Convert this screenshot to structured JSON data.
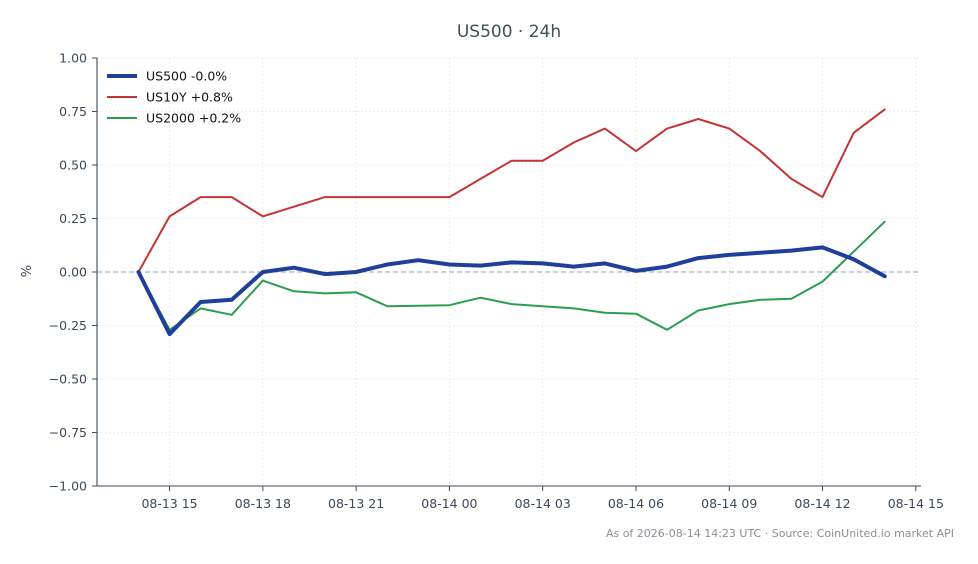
{
  "chart_data": {
    "type": "line",
    "title": "US500 · 24h",
    "ylabel": "%",
    "xlabel": "",
    "ylim": [
      -1.0,
      1.0
    ],
    "y_ticks": [
      1.0,
      0.75,
      0.5,
      0.25,
      0.0,
      -0.25,
      -0.5,
      -0.75,
      -1.0
    ],
    "y_tick_labels": [
      "1.00",
      "0.75",
      "0.50",
      "0.25",
      "0.00",
      "−0.25",
      "−0.50",
      "−0.75",
      "−1.00"
    ],
    "x_range": [
      "2026-08-13 12:40",
      "2026-08-14 15:10"
    ],
    "x_ticks": [
      "2026-08-13 15:00",
      "2026-08-13 18:00",
      "2026-08-13 21:00",
      "2026-08-14 00:00",
      "2026-08-14 03:00",
      "2026-08-14 06:00",
      "2026-08-14 09:00",
      "2026-08-14 12:00",
      "2026-08-14 15:00"
    ],
    "x_tick_labels": [
      "08-13 15",
      "08-13 18",
      "08-13 21",
      "08-14 00",
      "08-14 03",
      "08-14 06",
      "08-14 09",
      "08-14 12",
      "08-14 15"
    ],
    "x": [
      "2026-08-13 14:00",
      "2026-08-13 15:00",
      "2026-08-13 16:00",
      "2026-08-13 17:00",
      "2026-08-13 18:00",
      "2026-08-13 19:00",
      "2026-08-13 20:00",
      "2026-08-13 21:00",
      "2026-08-13 22:00",
      "2026-08-13 23:00",
      "2026-08-14 00:00",
      "2026-08-14 01:00",
      "2026-08-14 02:00",
      "2026-08-14 03:00",
      "2026-08-14 04:00",
      "2026-08-14 05:00",
      "2026-08-14 06:00",
      "2026-08-14 07:00",
      "2026-08-14 08:00",
      "2026-08-14 09:00",
      "2026-08-14 10:00",
      "2026-08-14 11:00",
      "2026-08-14 12:00",
      "2026-08-14 13:00",
      "2026-08-14 14:00"
    ],
    "series": [
      {
        "name": "US500 -0.0%",
        "color": "#1f3f9a",
        "width": "thick",
        "values": [
          0.0,
          -0.29,
          -0.14,
          -0.13,
          0.0,
          0.02,
          -0.01,
          0.0,
          0.035,
          0.055,
          0.035,
          0.03,
          0.045,
          0.04,
          0.025,
          0.04,
          0.005,
          0.025,
          0.065,
          0.08,
          0.09,
          0.1,
          0.115,
          0.06,
          -0.02
        ]
      },
      {
        "name": "US10Y +0.8%",
        "color": "#c43434",
        "width": "normal",
        "values": [
          0.0,
          0.26,
          0.35,
          0.35,
          0.26,
          0.305,
          0.35,
          0.35,
          0.35,
          0.35,
          0.35,
          0.435,
          0.52,
          0.52,
          0.605,
          0.67,
          0.565,
          0.67,
          0.715,
          0.67,
          0.565,
          0.435,
          0.35,
          0.65,
          0.76
        ]
      },
      {
        "name": "US2000 +0.2%",
        "color": "#2a9e4f",
        "width": "normal",
        "values": [
          0.0,
          -0.27,
          -0.17,
          -0.2,
          -0.04,
          -0.09,
          -0.1,
          -0.095,
          -0.16,
          -0.158,
          -0.155,
          -0.12,
          -0.15,
          -0.16,
          -0.17,
          -0.19,
          -0.195,
          -0.27,
          -0.18,
          -0.15,
          -0.13,
          -0.125,
          -0.045,
          0.095,
          0.235
        ]
      }
    ],
    "reference_line": {
      "y": 0.0,
      "color": "#8fa3b8",
      "style": "dashed"
    },
    "grid": true,
    "legend_position": "top-left"
  },
  "footer": {
    "text": "As of 2026-08-14 14:23 UTC · Source: CoinUnited.io market API"
  }
}
